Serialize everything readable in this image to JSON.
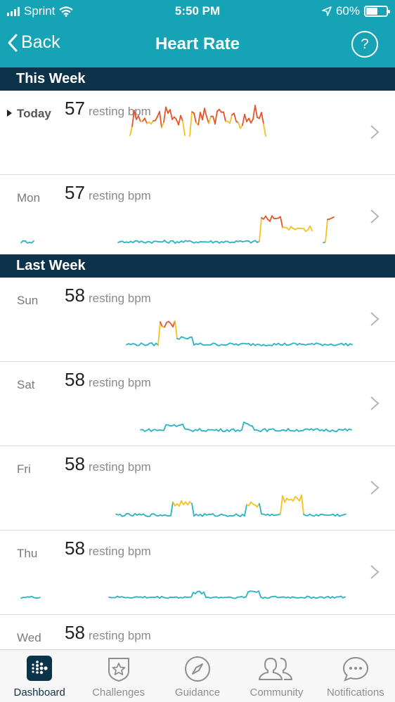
{
  "status_bar": {
    "carrier": "Sprint",
    "time": "5:50 PM",
    "battery_percent": "60%",
    "battery_level": 0.6
  },
  "nav": {
    "back_label": "Back",
    "title": "Heart Rate",
    "help_label": "?"
  },
  "sections": [
    {
      "title": "This Week"
    },
    {
      "title": "Last Week"
    }
  ],
  "days": [
    {
      "day": "Today",
      "value": "57",
      "unit": "resting bpm"
    },
    {
      "day": "Mon",
      "value": "57",
      "unit": "resting bpm"
    },
    {
      "day": "Sun",
      "value": "58",
      "unit": "resting bpm"
    },
    {
      "day": "Sat",
      "value": "58",
      "unit": "resting bpm"
    },
    {
      "day": "Fri",
      "value": "58",
      "unit": "resting bpm"
    },
    {
      "day": "Thu",
      "value": "58",
      "unit": "resting bpm"
    },
    {
      "day": "Wed",
      "value": "58",
      "unit": "resting bpm"
    }
  ],
  "tabs": [
    {
      "label": "Dashboard",
      "icon": "dashboard-icon"
    },
    {
      "label": "Challenges",
      "icon": "star-badge-icon"
    },
    {
      "label": "Guidance",
      "icon": "compass-icon"
    },
    {
      "label": "Community",
      "icon": "people-icon"
    },
    {
      "label": "Notifications",
      "icon": "chat-bubble-icon"
    }
  ],
  "colors": {
    "header": "#17a3b6",
    "section": "#0c3349",
    "low_zone": "#2ab3c4",
    "mid_zone": "#f6c21c",
    "high_zone": "#e5542a"
  }
}
